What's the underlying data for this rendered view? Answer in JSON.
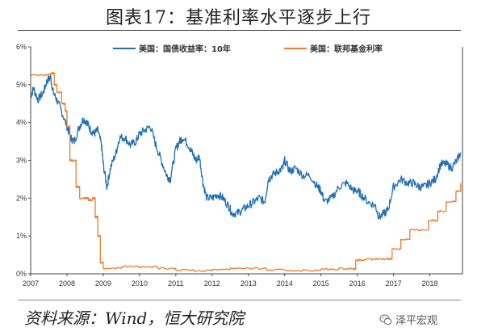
{
  "header": {
    "title": "图表17：基准利率水平逐步上行"
  },
  "footer": {
    "source": "资料来源：Wind，恒大研究院"
  },
  "watermark": {
    "text": "泽平宏观",
    "icon": "wechat-icon"
  },
  "chart_data": {
    "type": "line",
    "title": "",
    "xlabel": "",
    "ylabel": "",
    "xlim": [
      2007.0,
      2018.9
    ],
    "ylim": [
      0,
      6
    ],
    "x_ticks": [
      "2007",
      "2008",
      "2009",
      "2010",
      "2011",
      "2012",
      "2013",
      "2014",
      "2015",
      "2016",
      "2017",
      "2018"
    ],
    "y_ticks": [
      "0%",
      "1%",
      "2%",
      "3%",
      "4%",
      "5%",
      "6%"
    ],
    "legend_position": "top",
    "grid": false,
    "series": [
      {
        "name": "美国：国债收益率：10年",
        "color": "#1f6fb4",
        "x": [
          2007.0,
          2007.08,
          2007.2,
          2007.35,
          2007.45,
          2007.55,
          2007.62,
          2007.72,
          2007.85,
          2008.0,
          2008.1,
          2008.2,
          2008.35,
          2008.45,
          2008.55,
          2008.65,
          2008.75,
          2008.85,
          2008.95,
          2009.0,
          2009.1,
          2009.2,
          2009.35,
          2009.45,
          2009.6,
          2009.75,
          2009.9,
          2010.0,
          2010.15,
          2010.3,
          2010.45,
          2010.6,
          2010.75,
          2010.85,
          2011.0,
          2011.1,
          2011.2,
          2011.35,
          2011.45,
          2011.55,
          2011.65,
          2011.75,
          2011.85,
          2012.0,
          2012.15,
          2012.3,
          2012.45,
          2012.55,
          2012.7,
          2012.85,
          2013.0,
          2013.15,
          2013.3,
          2013.45,
          2013.55,
          2013.65,
          2013.8,
          2013.95,
          2014.0,
          2014.15,
          2014.3,
          2014.5,
          2014.7,
          2014.9,
          2015.0,
          2015.1,
          2015.3,
          2015.5,
          2015.7,
          2015.9,
          2016.0,
          2016.1,
          2016.3,
          2016.5,
          2016.6,
          2016.75,
          2016.85,
          2017.0,
          2017.2,
          2017.4,
          2017.55,
          2017.7,
          2017.85,
          2018.0,
          2018.15,
          2018.3,
          2018.45,
          2018.6,
          2018.75,
          2018.85
        ],
        "values": [
          4.7,
          4.9,
          4.6,
          4.8,
          5.1,
          5.2,
          4.8,
          4.6,
          4.3,
          3.9,
          3.6,
          3.5,
          3.9,
          4.1,
          4.0,
          3.8,
          3.7,
          3.8,
          3.4,
          2.9,
          2.3,
          2.8,
          3.2,
          3.6,
          3.6,
          3.4,
          3.5,
          3.7,
          3.8,
          3.9,
          3.4,
          3.0,
          2.6,
          2.5,
          3.3,
          3.5,
          3.6,
          3.4,
          3.2,
          3.0,
          3.1,
          2.4,
          2.0,
          2.0,
          2.1,
          2.0,
          1.8,
          1.6,
          1.6,
          1.7,
          1.8,
          1.9,
          2.0,
          1.9,
          2.5,
          2.6,
          2.7,
          2.8,
          3.0,
          2.7,
          2.8,
          2.6,
          2.6,
          2.3,
          2.2,
          1.9,
          2.0,
          2.3,
          2.4,
          2.2,
          2.2,
          2.1,
          1.9,
          1.8,
          1.5,
          1.6,
          1.7,
          2.3,
          2.5,
          2.4,
          2.4,
          2.3,
          2.3,
          2.4,
          2.5,
          2.9,
          2.9,
          2.8,
          3.0,
          3.2
        ]
      },
      {
        "name": "美国：联邦基金利率",
        "color": "#ed7d31",
        "x": [
          2007.0,
          2007.3,
          2007.55,
          2007.65,
          2007.72,
          2007.85,
          2007.95,
          2008.0,
          2008.08,
          2008.15,
          2008.25,
          2008.35,
          2008.5,
          2008.6,
          2008.7,
          2008.78,
          2008.85,
          2008.92,
          2009.0,
          2009.5,
          2010.0,
          2010.5,
          2011.0,
          2011.5,
          2012.0,
          2012.5,
          2013.0,
          2013.5,
          2014.0,
          2014.5,
          2015.0,
          2015.5,
          2015.9,
          2015.96,
          2016.2,
          2016.5,
          2016.8,
          2016.96,
          2017.2,
          2017.45,
          2017.72,
          2017.96,
          2018.22,
          2018.45,
          2018.72,
          2018.85
        ],
        "values": [
          5.25,
          5.26,
          5.3,
          5.0,
          4.8,
          4.5,
          4.3,
          3.9,
          3.0,
          3.0,
          2.3,
          2.0,
          2.0,
          1.95,
          2.0,
          1.5,
          1.0,
          0.3,
          0.15,
          0.2,
          0.18,
          0.15,
          0.1,
          0.08,
          0.12,
          0.15,
          0.14,
          0.1,
          0.09,
          0.09,
          0.12,
          0.14,
          0.13,
          0.36,
          0.38,
          0.39,
          0.4,
          0.66,
          0.91,
          1.16,
          1.16,
          1.41,
          1.66,
          1.91,
          2.18,
          2.4
        ]
      }
    ]
  }
}
